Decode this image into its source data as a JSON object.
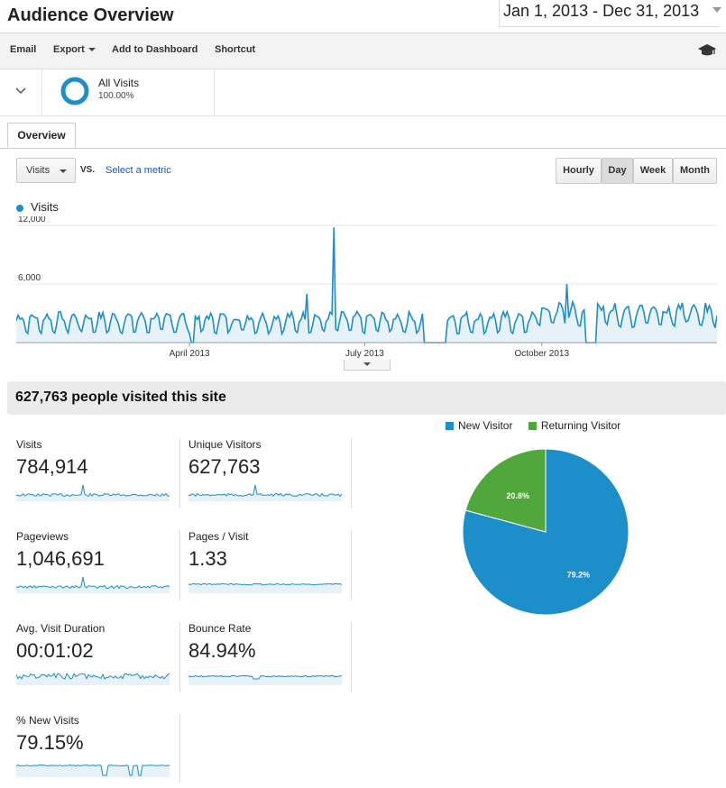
{
  "header": {
    "title": "Audience Overview",
    "date_range": "Jan 1, 2013 - Dec 31, 2013"
  },
  "toolbar": {
    "email": "Email",
    "export": "Export",
    "add_dashboard": "Add to Dashboard",
    "shortcut": "Shortcut",
    "right_icon": "graduation-cap-icon"
  },
  "segment": {
    "name": "All Visits",
    "percent": "100.00%",
    "percent_fill": 1.0
  },
  "tabs": {
    "overview": "Overview"
  },
  "controls": {
    "metric": "Visits",
    "vs": "VS.",
    "select_metric": "Select a metric",
    "granularity": [
      "Hourly",
      "Day",
      "Week",
      "Month"
    ],
    "active_granularity": "Day"
  },
  "colors": {
    "accent": "#1c8ec9",
    "fill": "#e7f1f8",
    "returning": "#50a73b",
    "link": "#1155cc"
  },
  "chart_data": {
    "type": "area",
    "series": [
      {
        "name": "Visits",
        "x_range": [
          "2013-01-01",
          "2013-12-31"
        ]
      }
    ],
    "yticks": [
      "12,000",
      "6,000"
    ],
    "ylim": [
      0,
      12000
    ],
    "xticks": [
      "April 2013",
      "July 2013",
      "October 2013"
    ],
    "xlabel": "",
    "ylabel": "",
    "notable_points": [
      {
        "date": "2013-06-15",
        "value": 11800
      },
      {
        "date": "2013-06-01",
        "value": 5000
      },
      {
        "date": "2013-10-14",
        "value": 6000
      }
    ],
    "zero_periods": [
      [
        "2013-04-02",
        "2013-04-03"
      ],
      [
        "2013-08-01",
        "2013-08-12"
      ],
      [
        "2013-10-24",
        "2013-10-29"
      ]
    ]
  },
  "summary": {
    "headline": "627,763 people visited this site"
  },
  "metrics": [
    {
      "label": "Visits",
      "value": "784,914"
    },
    {
      "label": "Unique Visitors",
      "value": "627,763"
    },
    {
      "label": "Pageviews",
      "value": "1,046,691"
    },
    {
      "label": "Pages / Visit",
      "value": "1.33"
    },
    {
      "label": "Avg. Visit Duration",
      "value": "00:01:02"
    },
    {
      "label": "Bounce Rate",
      "value": "84.94%"
    },
    {
      "label": "% New Visits",
      "value": "79.15%"
    }
  ],
  "pie": {
    "legend": [
      "New Visitor",
      "Returning Visitor"
    ],
    "slices": [
      {
        "name": "New Visitor",
        "value": 79.2,
        "label": "79.2%"
      },
      {
        "name": "Returning Visitor",
        "value": 20.8,
        "label": "20.8%"
      }
    ]
  }
}
